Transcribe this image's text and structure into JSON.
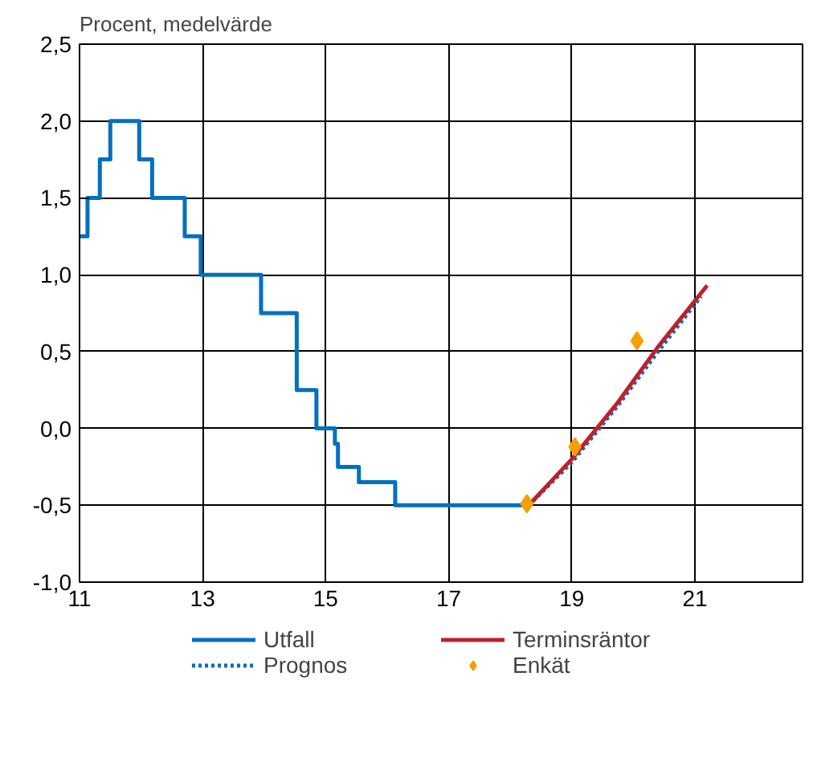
{
  "chart_data": {
    "type": "line",
    "title": "Procent, medelvärde",
    "xlim": [
      11,
      22.75
    ],
    "ylim": [
      -1.0,
      2.5
    ],
    "xticks": [
      11,
      13,
      15,
      17,
      19,
      21
    ],
    "yticks": [
      {
        "value": -1.0,
        "label": "-1,0"
      },
      {
        "value": -0.5,
        "label": "-0,5"
      },
      {
        "value": 0.0,
        "label": "0,0"
      },
      {
        "value": 0.5,
        "label": "0,5"
      },
      {
        "value": 1.0,
        "label": "1,0"
      },
      {
        "value": 1.5,
        "label": "1,5"
      },
      {
        "value": 2.0,
        "label": "2,0"
      },
      {
        "value": 2.5,
        "label": "2,5"
      }
    ],
    "grid": true,
    "legend": "bottom",
    "series": [
      {
        "name": "Utfall",
        "type": "step",
        "color": "#0070c0",
        "line_style": "solid",
        "x": [
          11.0,
          11.13,
          11.33,
          11.5,
          11.97,
          12.18,
          12.71,
          12.97,
          13.95,
          14.53,
          14.85,
          15.15,
          15.2,
          15.54,
          16.13,
          18.3
        ],
        "values": [
          1.25,
          1.5,
          1.75,
          2.0,
          1.75,
          1.5,
          1.25,
          1.0,
          0.75,
          0.25,
          0.0,
          -0.1,
          -0.25,
          -0.35,
          -0.5,
          -0.5
        ]
      },
      {
        "name": "Prognos",
        "color": "#0070c0",
        "line_style": "dotted",
        "x": [
          18.3,
          19.0,
          19.75,
          20.4,
          21.1
        ],
        "values": [
          -0.5,
          -0.22,
          0.15,
          0.5,
          0.86
        ]
      },
      {
        "name": "Terminsräntor",
        "color": "#c0202a",
        "line_style": "solid",
        "x": [
          18.3,
          19.0,
          19.75,
          20.4,
          21.2
        ],
        "values": [
          -0.5,
          -0.2,
          0.17,
          0.53,
          0.93
        ]
      },
      {
        "name": "Enkät",
        "type": "scatter",
        "marker": "diamond",
        "color": "#f5a000",
        "x": [
          18.27,
          19.05,
          20.06
        ],
        "values": [
          -0.49,
          -0.12,
          0.57
        ]
      }
    ]
  }
}
